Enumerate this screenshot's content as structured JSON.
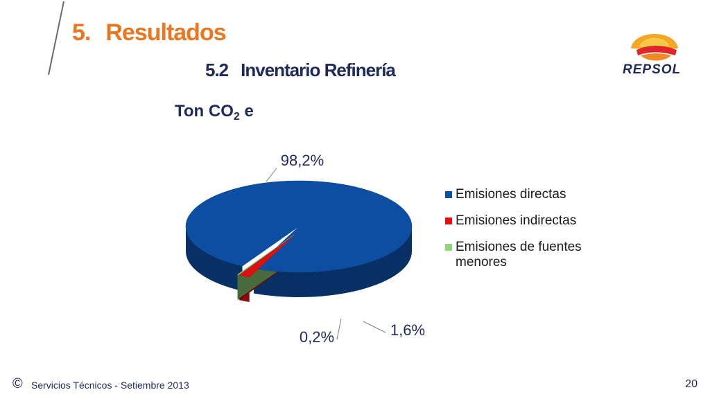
{
  "header": {
    "section_number": "5.",
    "section_title": "Resultados",
    "subsection_number": "5.2",
    "subsection_title": "Inventario Refinería",
    "unit_prefix": "Ton CO",
    "unit_sub": "2",
    "unit_suffix": " e"
  },
  "logo": {
    "text": "REPSOL"
  },
  "colors": {
    "title": "#e87722",
    "navy": "#1f2a5c",
    "directas": "#0b4ea2",
    "indirectas": "#e01010",
    "menores": "#8fd47a"
  },
  "chart_data": {
    "type": "pie",
    "style": "3d",
    "title": "",
    "legend_position": "right",
    "slices": [
      {
        "name": "Emisiones directas",
        "value": 98.2,
        "label": "98,2%",
        "color": "#0b4ea2"
      },
      {
        "name": "Emisiones indirectas",
        "value": 1.6,
        "label": "1,6%",
        "color": "#e01010"
      },
      {
        "name": "Emisiones de fuentes menores",
        "value": 0.2,
        "label": "0,2%",
        "color": "#8fd47a"
      }
    ]
  },
  "footer": {
    "copyright": "©",
    "text": "Servicios Técnicos - Setiembre 2013",
    "page": "20"
  }
}
